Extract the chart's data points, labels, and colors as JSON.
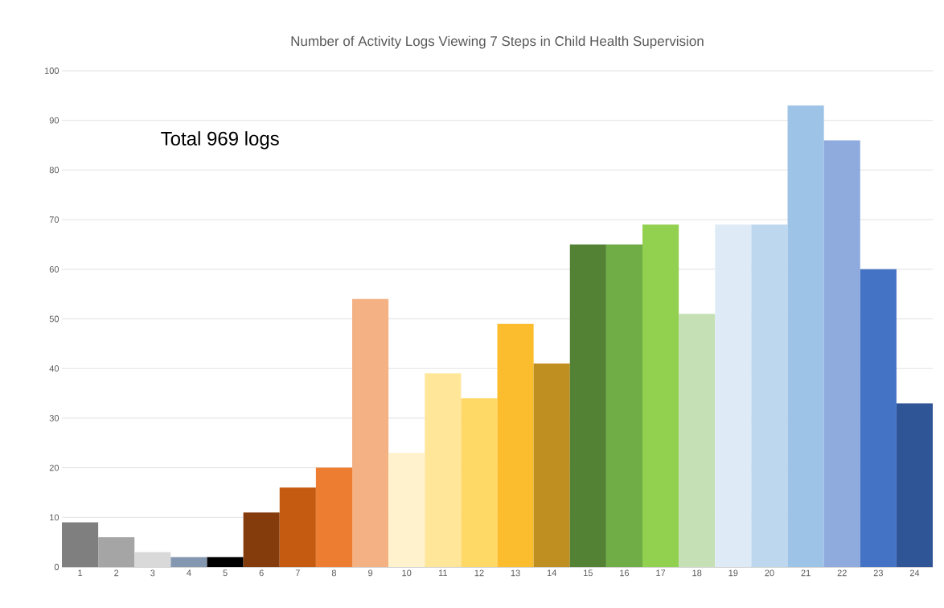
{
  "chart_data": {
    "type": "bar",
    "title": "Number of Activity Logs Viewing 7 Steps in Child Health Supervision",
    "categories": [
      "1",
      "2",
      "3",
      "4",
      "5",
      "6",
      "7",
      "8",
      "9",
      "10",
      "11",
      "12",
      "13",
      "14",
      "15",
      "16",
      "17",
      "18",
      "19",
      "20",
      "21",
      "22",
      "23",
      "24"
    ],
    "values": [
      9,
      6,
      3,
      2,
      2,
      11,
      16,
      20,
      54,
      23,
      39,
      34,
      49,
      41,
      65,
      65,
      69,
      51,
      69,
      69,
      93,
      86,
      60,
      33
    ],
    "colors": [
      "#7f7f7f",
      "#a5a5a5",
      "#d9d9d9",
      "#8497b0",
      "#000000",
      "#843c0c",
      "#c55a11",
      "#ed7d31",
      "#f4b183",
      "#fff2cc",
      "#ffe699",
      "#ffd966",
      "#fbbd2d",
      "#bf8f22",
      "#548235",
      "#70ad47",
      "#92d050",
      "#c5e0b4",
      "#deebf7",
      "#bdd7ee",
      "#9dc3e6",
      "#8faadc",
      "#4472c4",
      "#2f5597"
    ],
    "ylim": [
      0,
      100
    ],
    "yticks": [
      0,
      10,
      20,
      30,
      40,
      50,
      60,
      70,
      80,
      90,
      100
    ],
    "grid": "y",
    "annotations": [
      "Total 969 logs"
    ]
  }
}
